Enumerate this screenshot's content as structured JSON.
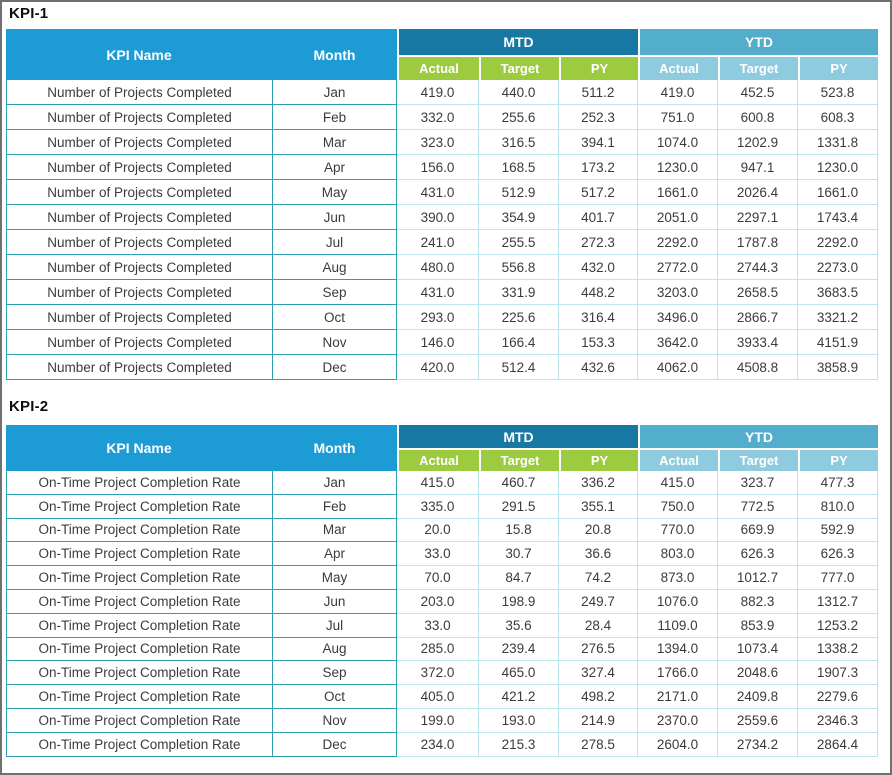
{
  "window": {
    "border_color": "#707070",
    "background": "#ffffff"
  },
  "colors": {
    "header_blue": "#1c9bd5",
    "mtd_bar_bg": "#1779a3",
    "ytd_bar_bg": "#52aecb",
    "mtd_subheader_bg": "#9ccb3f",
    "ytd_subheader_bg": "#8fcbdf",
    "grid_teal": "#2d9fb0",
    "grid_light": "#bee5eb",
    "header_text": "#ffffff",
    "cell_text": "#3b3b3b"
  },
  "tables": [
    {
      "title": "KPI-1",
      "headers": {
        "kpi_name": "KPI Name",
        "month": "Month",
        "mtd": "MTD",
        "ytd": "YTD",
        "sub": [
          "Actual",
          "Target",
          "PY"
        ]
      },
      "kpi_name": "Number of Projects Completed",
      "rows": [
        {
          "month": "Jan",
          "values": [
            "419.0",
            "440.0",
            "511.2",
            "419.0",
            "452.5",
            "523.8"
          ]
        },
        {
          "month": "Feb",
          "values": [
            "332.0",
            "255.6",
            "252.3",
            "751.0",
            "600.8",
            "608.3"
          ]
        },
        {
          "month": "Mar",
          "values": [
            "323.0",
            "316.5",
            "394.1",
            "1074.0",
            "1202.9",
            "1331.8"
          ]
        },
        {
          "month": "Apr",
          "values": [
            "156.0",
            "168.5",
            "173.2",
            "1230.0",
            "947.1",
            "1230.0"
          ]
        },
        {
          "month": "May",
          "values": [
            "431.0",
            "512.9",
            "517.2",
            "1661.0",
            "2026.4",
            "1661.0"
          ]
        },
        {
          "month": "Jun",
          "values": [
            "390.0",
            "354.9",
            "401.7",
            "2051.0",
            "2297.1",
            "1743.4"
          ]
        },
        {
          "month": "Jul",
          "values": [
            "241.0",
            "255.5",
            "272.3",
            "2292.0",
            "1787.8",
            "2292.0"
          ]
        },
        {
          "month": "Aug",
          "values": [
            "480.0",
            "556.8",
            "432.0",
            "2772.0",
            "2744.3",
            "2273.0"
          ]
        },
        {
          "month": "Sep",
          "values": [
            "431.0",
            "331.9",
            "448.2",
            "3203.0",
            "2658.5",
            "3683.5"
          ]
        },
        {
          "month": "Oct",
          "values": [
            "293.0",
            "225.6",
            "316.4",
            "3496.0",
            "2866.7",
            "3321.2"
          ]
        },
        {
          "month": "Nov",
          "values": [
            "146.0",
            "166.4",
            "153.3",
            "3642.0",
            "3933.4",
            "4151.9"
          ]
        },
        {
          "month": "Dec",
          "values": [
            "420.0",
            "512.4",
            "432.6",
            "4062.0",
            "4508.8",
            "3858.9"
          ]
        }
      ]
    },
    {
      "title": "KPI-2",
      "headers": {
        "kpi_name": "KPI Name",
        "month": "Month",
        "mtd": "MTD",
        "ytd": "YTD",
        "sub": [
          "Actual",
          "Target",
          "PY"
        ]
      },
      "kpi_name": "On-Time Project Completion Rate",
      "rows": [
        {
          "month": "Jan",
          "values": [
            "415.0",
            "460.7",
            "336.2",
            "415.0",
            "323.7",
            "477.3"
          ]
        },
        {
          "month": "Feb",
          "values": [
            "335.0",
            "291.5",
            "355.1",
            "750.0",
            "772.5",
            "810.0"
          ]
        },
        {
          "month": "Mar",
          "values": [
            "20.0",
            "15.8",
            "20.8",
            "770.0",
            "669.9",
            "592.9"
          ]
        },
        {
          "month": "Apr",
          "values": [
            "33.0",
            "30.7",
            "36.6",
            "803.0",
            "626.3",
            "626.3"
          ]
        },
        {
          "month": "May",
          "values": [
            "70.0",
            "84.7",
            "74.2",
            "873.0",
            "1012.7",
            "777.0"
          ]
        },
        {
          "month": "Jun",
          "values": [
            "203.0",
            "198.9",
            "249.7",
            "1076.0",
            "882.3",
            "1312.7"
          ]
        },
        {
          "month": "Jul",
          "values": [
            "33.0",
            "35.6",
            "28.4",
            "1109.0",
            "853.9",
            "1253.2"
          ]
        },
        {
          "month": "Aug",
          "values": [
            "285.0",
            "239.4",
            "276.5",
            "1394.0",
            "1073.4",
            "1338.2"
          ]
        },
        {
          "month": "Sep",
          "values": [
            "372.0",
            "465.0",
            "327.4",
            "1766.0",
            "2048.6",
            "1907.3"
          ]
        },
        {
          "month": "Oct",
          "values": [
            "405.0",
            "421.2",
            "498.2",
            "2171.0",
            "2409.8",
            "2279.6"
          ]
        },
        {
          "month": "Nov",
          "values": [
            "199.0",
            "193.0",
            "214.9",
            "2370.0",
            "2559.6",
            "2346.3"
          ]
        },
        {
          "month": "Dec",
          "values": [
            "234.0",
            "215.3",
            "278.5",
            "2604.0",
            "2734.2",
            "2864.4"
          ]
        }
      ]
    }
  ]
}
